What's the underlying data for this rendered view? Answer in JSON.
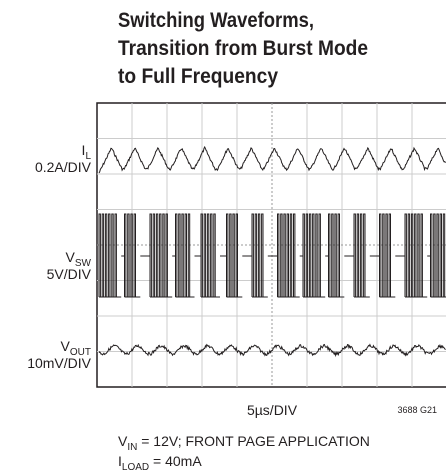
{
  "title": [
    "Switching Waveforms,",
    "Transition from Burst Mode",
    "to Full Frequency"
  ],
  "traces": [
    {
      "name": "I",
      "sub": "L",
      "scale": "0.2A/DIV"
    },
    {
      "name": "V",
      "sub": "SW",
      "scale": "5V/DIV"
    },
    {
      "name": "V",
      "sub": "OUT",
      "scale": "10mV/DIV"
    }
  ],
  "time_scale": "5µs/DIV",
  "figure_id": "3688 G21",
  "notes": [
    {
      "main": "V",
      "sub": "IN",
      "rest": " = 12V; FRONT PAGE APPLICATION"
    },
    {
      "main": "I",
      "sub": "LOAD",
      "rest": " = 40mA"
    }
  ]
}
